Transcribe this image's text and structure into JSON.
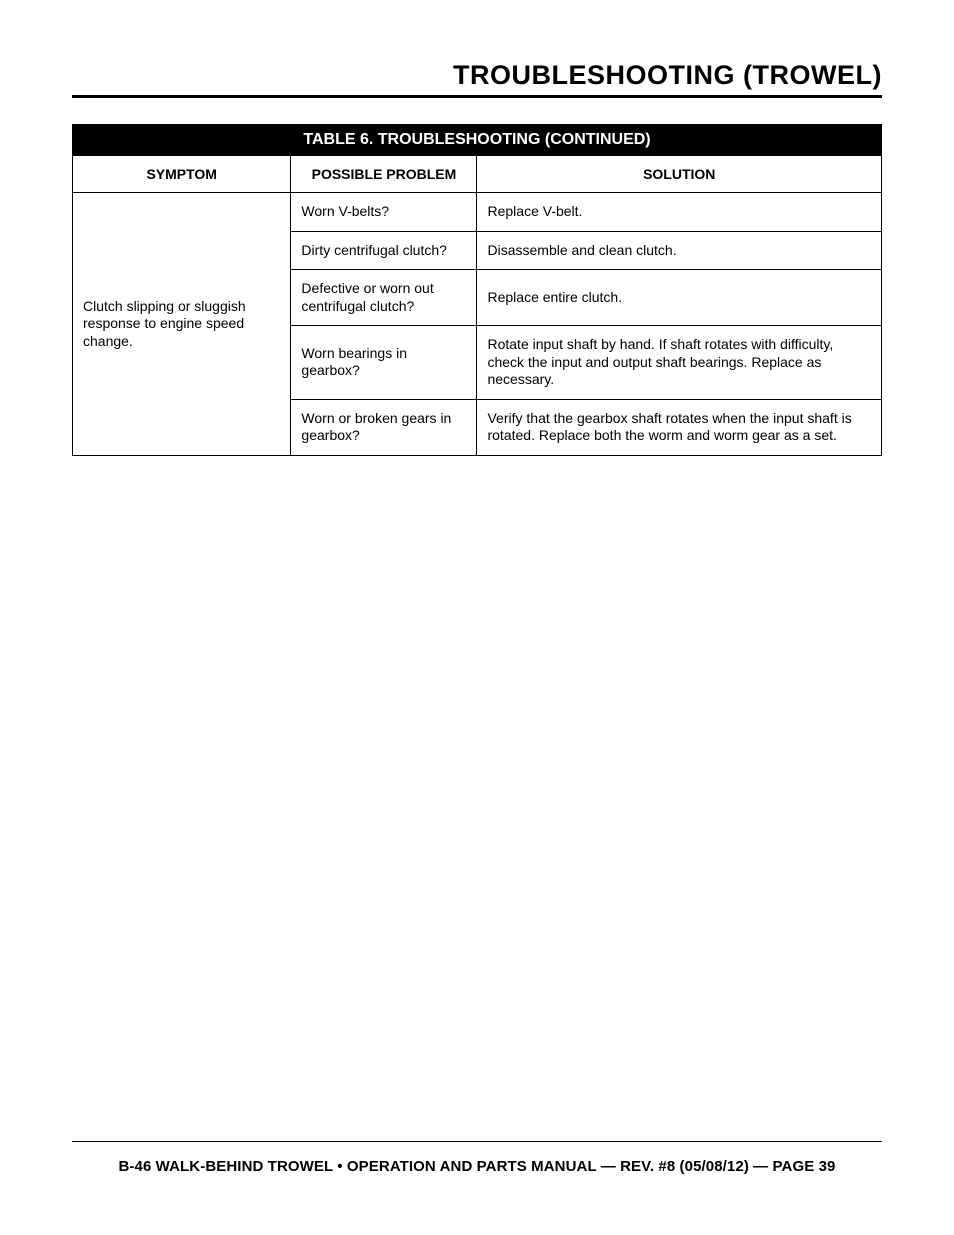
{
  "header": {
    "page_title": "TROUBLESHOOTING (TROWEL)"
  },
  "table": {
    "title": "TABLE 6. TROUBLESHOOTING (CONTINUED)",
    "columns": {
      "symptom": "SYMPTOM",
      "problem": "POSSIBLE PROBLEM",
      "solution": "SOLUTION"
    },
    "symptom": "Clutch slipping or sluggish response to engine speed change.",
    "rows": [
      {
        "problem": "Worn V-belts?",
        "solution": "Replace V-belt."
      },
      {
        "problem": "Dirty centrifugal clutch?",
        "solution": "Disassemble and clean clutch."
      },
      {
        "problem": "Defective or worn out centrifugal clutch?",
        "solution": "Replace entire clutch."
      },
      {
        "problem": "Worn bearings in gearbox?",
        "solution": "Rotate input shaft by hand. If shaft rotates with difficulty, check the input and output shaft bearings. Replace as necessary."
      },
      {
        "problem": "Worn or broken gears in gearbox?",
        "solution": "Verify that the gearbox shaft rotates when the input shaft is rotated. Replace both the worm and worm gear as a set."
      }
    ]
  },
  "footer": {
    "text": "B-46 WALK-BEHIND TROWEL • OPERATION AND PARTS MANUAL — REV. #8 (05/08/12) — PAGE 39"
  },
  "style": {
    "colors": {
      "page_bg": "#ffffff",
      "text": "#000000",
      "title_row_bg": "#000000",
      "title_row_text": "#ffffff",
      "border": "#000000"
    },
    "fonts": {
      "page_title_size_pt": 20,
      "page_title_weight": 900,
      "table_title_size_pt": 12,
      "table_head_size_pt": 10.5,
      "table_body_size_pt": 10.5,
      "footer_size_pt": 11
    },
    "column_widths_pct": [
      27,
      23,
      50
    ]
  }
}
